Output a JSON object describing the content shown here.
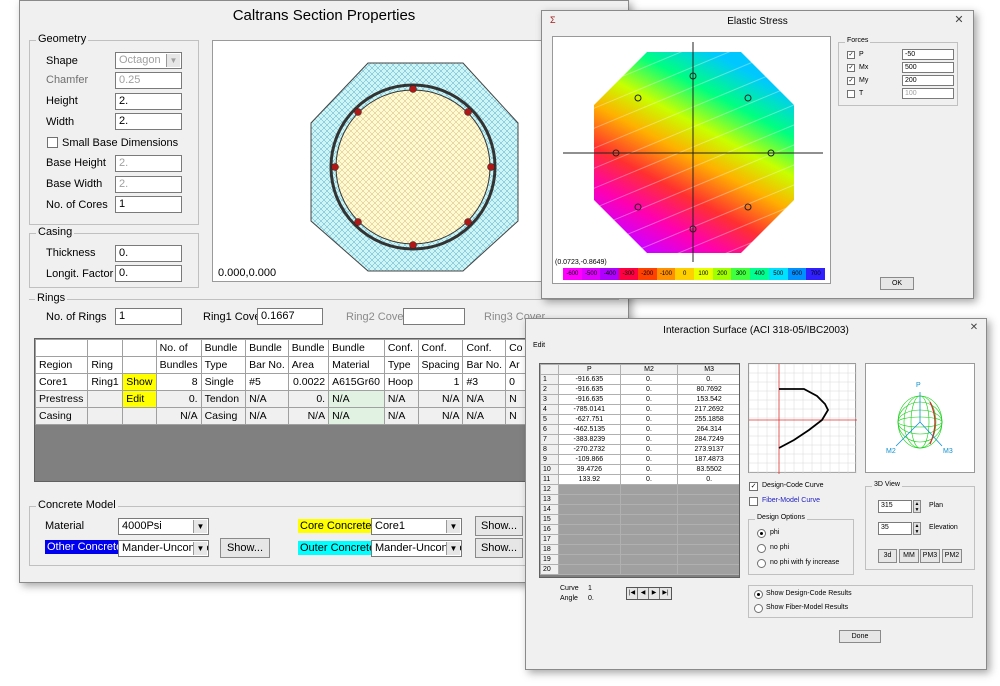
{
  "main": {
    "title": "Caltrans Section Properties",
    "geometry": {
      "caption": "Geometry",
      "shape_label": "Shape",
      "shape_value": "Octagon",
      "chamfer_label": "Chamfer",
      "chamfer_value": "0.25",
      "height_label": "Height",
      "height_value": "2.",
      "width_label": "Width",
      "width_value": "2.",
      "small_base_label": "Small Base Dimensions",
      "base_height_label": "Base Height",
      "base_height_value": "2.",
      "base_width_label": "Base Width",
      "base_width_value": "2.",
      "cores_label": "No. of Cores",
      "cores_value": "1"
    },
    "casing": {
      "caption": "Casing",
      "thickness_label": "Thickness",
      "thickness_value": "0.",
      "longit_label": "Longit. Factor",
      "longit_value": "0."
    },
    "preview_coords": "0.000,0.000",
    "rings": {
      "caption": "Rings",
      "no_label": "No. of Rings",
      "no_value": "1",
      "ring1_label": "Ring1 Cover",
      "ring1_value": "0.1667",
      "ring2_label": "Ring2 Cover",
      "ring3_label": "Ring3 Cover"
    },
    "table": {
      "head1": [
        "",
        "",
        "",
        "No. of",
        "Bundle",
        "Bundle",
        "Bundle",
        "Bundle",
        "Conf.",
        "Conf.",
        "Conf.",
        "Co"
      ],
      "head2": [
        "Region",
        "Ring",
        "",
        "Bundles",
        "Type",
        "Bar No.",
        "Area",
        "Material",
        "Type",
        "Spacing",
        "Bar No.",
        "Ar"
      ],
      "rows": [
        [
          "Core1",
          "Ring1",
          "Show",
          "8",
          "Single",
          "#5",
          "0.0022",
          "A615Gr60",
          "Hoop",
          "1",
          "#3",
          "0"
        ],
        [
          "Prestress",
          "",
          "Edit",
          "0.",
          "Tendon",
          "N/A",
          "0.",
          "N/A",
          "N/A",
          "N/A",
          "N/A",
          "N"
        ],
        [
          "Casing",
          "",
          "",
          "N/A",
          "Casing",
          "N/A",
          "N/A",
          "N/A",
          "N/A",
          "N/A",
          "N/A",
          "N"
        ]
      ]
    },
    "concrete": {
      "caption": "Concrete Model",
      "material_label": "Material",
      "material_value": "4000Psi",
      "other_label": "Other Concrete",
      "other_value": "Mander-Unconfined",
      "core_label": "Core Concrete",
      "core_value": "Core1",
      "outer_label": "Outer Concrete",
      "outer_value": "Mander-Unconfined",
      "show_label": "Show..."
    }
  },
  "stress": {
    "title": "Elastic Stress",
    "coords": "(0.0723,-0.8649)",
    "scale": [
      "-600",
      "-500",
      "-400",
      "-300",
      "-200",
      "-100",
      "0",
      "100",
      "200",
      "300",
      "400",
      "500",
      "600",
      "700"
    ],
    "forces": {
      "caption": "Forces",
      "items": [
        {
          "label": "P",
          "value": "-50",
          "checked": true
        },
        {
          "label": "Mx",
          "value": "500",
          "checked": true
        },
        {
          "label": "My",
          "value": "200",
          "checked": true
        },
        {
          "label": "T",
          "value": "100",
          "checked": false
        }
      ]
    },
    "ok_label": "OK"
  },
  "interaction": {
    "title": "Interaction Surface   (ACI 318-05/IBC2003)",
    "menu_edit": "Edit",
    "columns": [
      "",
      "P",
      "M2",
      "M3"
    ],
    "rows": [
      [
        "1",
        "-916.635",
        "0.",
        "0."
      ],
      [
        "2",
        "-916.635",
        "0.",
        "80.7692"
      ],
      [
        "3",
        "-916.635",
        "0.",
        "153.542"
      ],
      [
        "4",
        "-785.0141",
        "0.",
        "217.2692"
      ],
      [
        "5",
        "-627.751",
        "0.",
        "255.1858"
      ],
      [
        "6",
        "-462.5135",
        "0.",
        "264.314"
      ],
      [
        "7",
        "-383.8239",
        "0.",
        "284.7249"
      ],
      [
        "8",
        "-270.2732",
        "0.",
        "273.9137"
      ],
      [
        "9",
        "-109.866",
        "0.",
        "187.4873"
      ],
      [
        "10",
        "39.4726",
        "0.",
        "83.5502"
      ],
      [
        "11",
        "133.92",
        "0.",
        "0."
      ],
      [
        "12",
        "",
        "",
        ""
      ],
      [
        "13",
        "",
        "",
        ""
      ],
      [
        "14",
        "",
        "",
        ""
      ],
      [
        "15",
        "",
        "",
        ""
      ],
      [
        "16",
        "",
        "",
        ""
      ],
      [
        "17",
        "",
        "",
        ""
      ],
      [
        "18",
        "",
        "",
        ""
      ],
      [
        "19",
        "",
        "",
        ""
      ],
      [
        "20",
        "",
        "",
        ""
      ]
    ],
    "curve_label": "Curve",
    "curve_value": "1",
    "angle_label": "Angle",
    "angle_value": "0.",
    "design_code_curve": "Design-Code Curve",
    "fiber_model_curve": "Fiber-Model Curve",
    "design_options_caption": "Design Options",
    "opt_phi": "phi",
    "opt_no_phi": "no phi",
    "opt_fy": "no phi with fy increase",
    "view3d_caption": "3D View",
    "plan_value": "315",
    "plan_label": "Plan",
    "elev_value": "35",
    "elev_label": "Elevation",
    "view_buttons": [
      "3d",
      "MM",
      "PM3",
      "PM2"
    ],
    "show_design_results": "Show Design-Code Results",
    "show_fiber_results": "Show Fiber-Model Results",
    "done_label": "Done",
    "plot3d_labels": {
      "p": "P",
      "m2": "M2",
      "m3": "M3"
    }
  }
}
